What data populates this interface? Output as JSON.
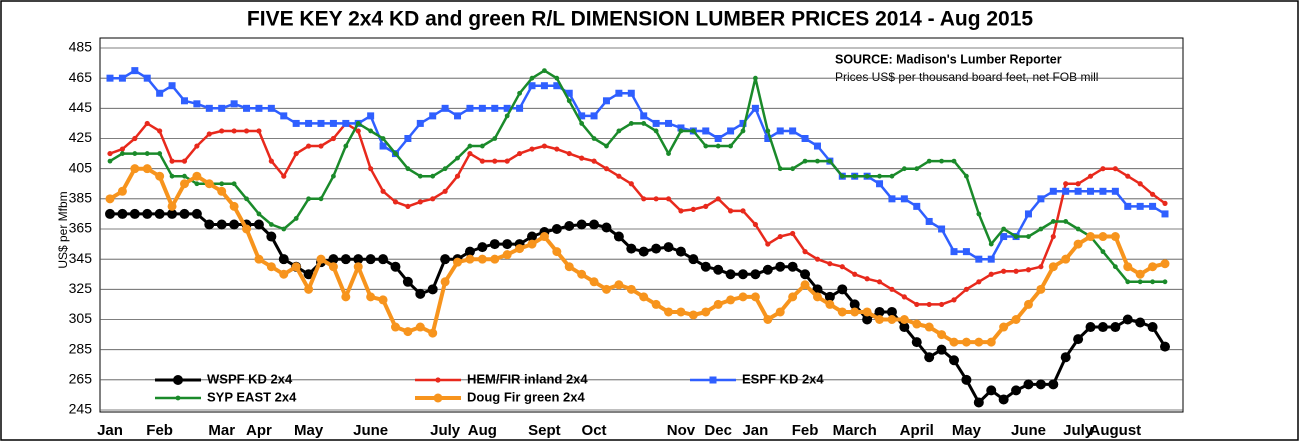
{
  "chart_data": {
    "type": "line",
    "title": "FIVE KEY 2x4 KD and green R/L DIMENSION LUMBER PRICES 2014 - Aug 2015",
    "annotations": [
      "SOURCE: Madison's Lumber Reporter",
      "Prices US$ per thousand board feet, net FOB mill"
    ],
    "ylabel": "US$ per Mfbm",
    "categories": [
      "Jan",
      null,
      null,
      null,
      "Feb",
      null,
      null,
      null,
      null,
      "Mar",
      null,
      null,
      "Apr",
      null,
      null,
      null,
      "May",
      null,
      null,
      null,
      null,
      "June",
      null,
      null,
      null,
      null,
      null,
      "July",
      null,
      null,
      "Aug",
      null,
      null,
      null,
      null,
      "Sept",
      null,
      null,
      null,
      "Oct",
      null,
      null,
      null,
      null,
      null,
      null,
      "Nov",
      null,
      null,
      "Dec",
      null,
      null,
      "Jan",
      null,
      null,
      null,
      "Feb",
      null,
      null,
      null,
      "March",
      null,
      null,
      null,
      null,
      "April",
      null,
      null,
      null,
      "May",
      null,
      null,
      null,
      null,
      "June",
      null,
      null,
      null,
      "July",
      null,
      null,
      "August",
      null,
      null,
      null,
      null
    ],
    "series": [
      {
        "name": "WSPF KD 2x4",
        "color": "#000000",
        "values": [
          375,
          375,
          375,
          375,
          375,
          375,
          375,
          375,
          368,
          368,
          368,
          368,
          368,
          360,
          345,
          340,
          335,
          343,
          345,
          345,
          345,
          345,
          345,
          340,
          330,
          322,
          325,
          345,
          345,
          350,
          353,
          355,
          355,
          355,
          360,
          363,
          365,
          367,
          368,
          368,
          366,
          360,
          352,
          350,
          352,
          353,
          350,
          345,
          340,
          338,
          335,
          335,
          335,
          338,
          340,
          340,
          335,
          325,
          320,
          325,
          315,
          305,
          310,
          310,
          300,
          290,
          280,
          285,
          278,
          265,
          250,
          258,
          252,
          258,
          262,
          262,
          262,
          280,
          292,
          300,
          300,
          300,
          305,
          303,
          300,
          287
        ]
      },
      {
        "name": "HEM/FIR inland 2x4",
        "color": "#e8291c",
        "values": [
          415,
          418,
          425,
          435,
          430,
          410,
          410,
          420,
          428,
          430,
          430,
          430,
          430,
          410,
          400,
          415,
          420,
          420,
          425,
          435,
          430,
          405,
          390,
          383,
          380,
          383,
          385,
          390,
          400,
          415,
          410,
          410,
          410,
          415,
          418,
          420,
          418,
          415,
          412,
          410,
          405,
          400,
          395,
          385,
          385,
          385,
          377,
          378,
          380,
          385,
          377,
          377,
          368,
          355,
          360,
          362,
          350,
          345,
          342,
          340,
          335,
          332,
          330,
          325,
          320,
          315,
          315,
          315,
          318,
          325,
          330,
          335,
          337,
          337,
          338,
          340,
          360,
          395,
          395,
          400,
          405,
          405,
          400,
          395,
          388,
          382
        ]
      },
      {
        "name": "ESPF KD 2x4",
        "color": "#2f5fff",
        "values": [
          465,
          465,
          470,
          465,
          455,
          460,
          450,
          448,
          445,
          445,
          448,
          445,
          445,
          445,
          440,
          435,
          435,
          435,
          435,
          435,
          435,
          440,
          420,
          415,
          425,
          435,
          440,
          445,
          440,
          445,
          445,
          445,
          445,
          445,
          460,
          460,
          460,
          455,
          440,
          440,
          450,
          455,
          455,
          440,
          435,
          435,
          432,
          430,
          430,
          425,
          430,
          435,
          445,
          425,
          430,
          430,
          425,
          420,
          410,
          400,
          400,
          400,
          395,
          385,
          385,
          380,
          370,
          365,
          350,
          350,
          345,
          345,
          360,
          360,
          375,
          385,
          390,
          390,
          390,
          390,
          390,
          390,
          380,
          380,
          380,
          375
        ]
      },
      {
        "name": "SYP EAST 2x4",
        "color": "#1a8a2a",
        "values": [
          410,
          415,
          415,
          415,
          415,
          400,
          400,
          395,
          395,
          395,
          395,
          385,
          375,
          368,
          365,
          372,
          385,
          385,
          400,
          420,
          435,
          430,
          425,
          415,
          405,
          400,
          400,
          405,
          412,
          420,
          420,
          425,
          440,
          455,
          465,
          470,
          465,
          450,
          435,
          425,
          420,
          430,
          435,
          435,
          430,
          415,
          430,
          430,
          420,
          420,
          420,
          430,
          465,
          430,
          405,
          405,
          410,
          410,
          410,
          400,
          400,
          400,
          400,
          400,
          405,
          405,
          410,
          410,
          410,
          400,
          375,
          355,
          365,
          360,
          360,
          365,
          370,
          370,
          365,
          360,
          350,
          340,
          330,
          330,
          330,
          330
        ]
      },
      {
        "name": "Doug Fir green 2x4",
        "color": "#f7941d",
        "values": [
          385,
          390,
          405,
          405,
          400,
          380,
          395,
          400,
          395,
          390,
          380,
          365,
          345,
          340,
          335,
          340,
          325,
          345,
          340,
          320,
          340,
          320,
          318,
          300,
          297,
          300,
          296,
          330,
          343,
          345,
          345,
          345,
          348,
          352,
          355,
          360,
          350,
          340,
          335,
          330,
          325,
          328,
          325,
          320,
          315,
          310,
          310,
          308,
          310,
          315,
          318,
          320,
          320,
          305,
          310,
          320,
          328,
          320,
          315,
          310,
          310,
          310,
          305,
          305,
          305,
          302,
          300,
          295,
          290,
          290,
          290,
          290,
          300,
          305,
          315,
          325,
          340,
          345,
          355,
          360,
          360,
          360,
          340,
          335,
          340,
          342
        ]
      }
    ],
    "ylim": [
      245,
      485
    ],
    "yticks": [
      245,
      265,
      285,
      305,
      325,
      345,
      365,
      385,
      405,
      425,
      445,
      465,
      485
    ],
    "grid": true,
    "legend": "lower left"
  }
}
